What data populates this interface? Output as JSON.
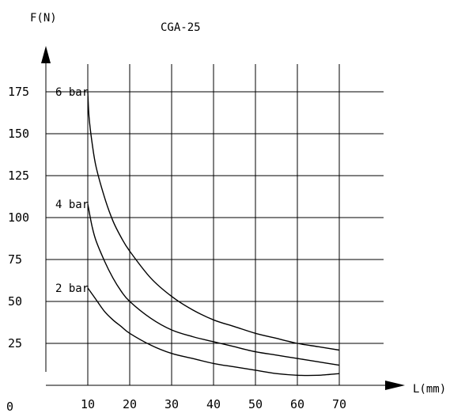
{
  "chart_data": {
    "type": "line",
    "title": "CGA-25",
    "ylabel": "F(N)",
    "xlabel": "L(mm)",
    "origin_label": "0",
    "x_ticks": [
      10,
      20,
      30,
      40,
      50,
      60,
      70
    ],
    "y_ticks": [
      25,
      50,
      75,
      100,
      125,
      150,
      175
    ],
    "xlim": [
      0,
      70
    ],
    "ylim": [
      0,
      175
    ],
    "grid": true,
    "series": [
      {
        "name": "6 bar",
        "x": [
          10,
          10.3,
          11,
          12,
          14,
          16,
          18,
          20,
          25,
          30,
          35,
          40,
          45,
          50,
          55,
          60,
          65,
          70
        ],
        "y": [
          175,
          160,
          145,
          130,
          112,
          98,
          88,
          80,
          64,
          53,
          45,
          39,
          35,
          31,
          28,
          25,
          23,
          21
        ]
      },
      {
        "name": "4 bar",
        "x": [
          10,
          11,
          12,
          14,
          16,
          18,
          20,
          25,
          30,
          35,
          40,
          45,
          50,
          55,
          60,
          65,
          70
        ],
        "y": [
          108,
          95,
          86,
          74,
          64,
          56,
          50,
          40,
          33,
          29,
          26,
          23,
          20,
          18,
          16,
          14,
          12
        ]
      },
      {
        "name": "2 bar",
        "x": [
          10,
          12,
          14,
          16,
          18,
          20,
          25,
          30,
          35,
          40,
          45,
          50,
          55,
          60,
          65,
          70
        ],
        "y": [
          58,
          51,
          44,
          39,
          35,
          31,
          24,
          19,
          16,
          13,
          11,
          9,
          7,
          6,
          6,
          7
        ]
      }
    ]
  }
}
